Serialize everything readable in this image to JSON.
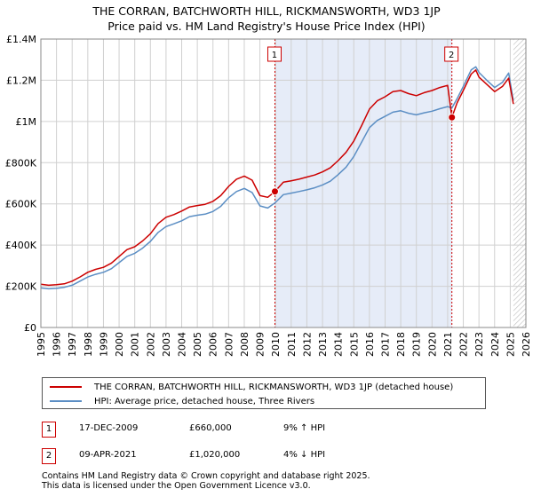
{
  "title": {
    "line1": "THE CORRAN, BATCHWORTH HILL, RICKMANSWORTH, WD3 1JP",
    "line2": "Price paid vs. HM Land Registry's House Price Index (HPI)"
  },
  "colors": {
    "property": "#cc0000",
    "hpi": "#5b8ec4",
    "shade": "#e6ecf8",
    "hatch": "#bbbbbb",
    "grid": "#d0d0d0"
  },
  "chart_data": {
    "type": "line",
    "xlim": [
      1995,
      2026
    ],
    "ylim": [
      0,
      1400000
    ],
    "x_ticks": [
      1995,
      1996,
      1997,
      1998,
      1999,
      2000,
      2001,
      2002,
      2003,
      2004,
      2005,
      2006,
      2007,
      2008,
      2009,
      2010,
      2011,
      2012,
      2013,
      2014,
      2015,
      2016,
      2017,
      2018,
      2019,
      2020,
      2021,
      2022,
      2023,
      2024,
      2025,
      2026
    ],
    "y_ticks": [
      {
        "value": 0,
        "label": "£0"
      },
      {
        "value": 200000,
        "label": "£200K"
      },
      {
        "value": 400000,
        "label": "£400K"
      },
      {
        "value": 600000,
        "label": "£600K"
      },
      {
        "value": 800000,
        "label": "£800K"
      },
      {
        "value": 1000000,
        "label": "£1M"
      },
      {
        "value": 1200000,
        "label": "£1.2M"
      },
      {
        "value": 1400000,
        "label": "£1.4M"
      }
    ],
    "shaded_period": [
      2009.96,
      2021.27
    ],
    "hatched_after": 2025.2,
    "series": [
      {
        "name": "THE CORRAN, BATCHWORTH HILL, RICKMANSWORTH, WD3 1JP (detached house)",
        "color": "#cc0000",
        "points": [
          [
            1995.0,
            210000
          ],
          [
            1995.5,
            205000
          ],
          [
            1996.0,
            208000
          ],
          [
            1996.5,
            212000
          ],
          [
            1997.0,
            225000
          ],
          [
            1997.5,
            245000
          ],
          [
            1998.0,
            268000
          ],
          [
            1998.5,
            282000
          ],
          [
            1999.0,
            292000
          ],
          [
            1999.5,
            312000
          ],
          [
            2000.0,
            345000
          ],
          [
            2000.5,
            378000
          ],
          [
            2001.0,
            392000
          ],
          [
            2001.5,
            420000
          ],
          [
            2002.0,
            455000
          ],
          [
            2002.5,
            505000
          ],
          [
            2003.0,
            535000
          ],
          [
            2003.5,
            548000
          ],
          [
            2004.0,
            565000
          ],
          [
            2004.5,
            585000
          ],
          [
            2005.0,
            592000
          ],
          [
            2005.5,
            598000
          ],
          [
            2006.0,
            612000
          ],
          [
            2006.5,
            640000
          ],
          [
            2007.0,
            685000
          ],
          [
            2007.5,
            720000
          ],
          [
            2008.0,
            735000
          ],
          [
            2008.5,
            715000
          ],
          [
            2009.0,
            640000
          ],
          [
            2009.5,
            632000
          ],
          [
            2009.96,
            660000
          ],
          [
            2010.5,
            705000
          ],
          [
            2011.0,
            712000
          ],
          [
            2011.5,
            720000
          ],
          [
            2012.0,
            730000
          ],
          [
            2012.5,
            740000
          ],
          [
            2013.0,
            755000
          ],
          [
            2013.5,
            775000
          ],
          [
            2014.0,
            810000
          ],
          [
            2014.5,
            850000
          ],
          [
            2015.0,
            905000
          ],
          [
            2015.5,
            980000
          ],
          [
            2016.0,
            1060000
          ],
          [
            2016.5,
            1100000
          ],
          [
            2017.0,
            1120000
          ],
          [
            2017.5,
            1145000
          ],
          [
            2018.0,
            1150000
          ],
          [
            2018.5,
            1135000
          ],
          [
            2019.0,
            1125000
          ],
          [
            2019.5,
            1140000
          ],
          [
            2020.0,
            1150000
          ],
          [
            2020.5,
            1165000
          ],
          [
            2021.0,
            1175000
          ],
          [
            2021.27,
            1020000
          ],
          [
            2021.6,
            1090000
          ],
          [
            2022.0,
            1150000
          ],
          [
            2022.5,
            1230000
          ],
          [
            2022.8,
            1250000
          ],
          [
            2023.0,
            1215000
          ],
          [
            2023.5,
            1180000
          ],
          [
            2024.0,
            1145000
          ],
          [
            2024.5,
            1170000
          ],
          [
            2024.9,
            1210000
          ],
          [
            2025.2,
            1085000
          ]
        ]
      },
      {
        "name": "HPI: Average price, detached house, Three Rivers",
        "color": "#5b8ec4",
        "points": [
          [
            1995.0,
            192000
          ],
          [
            1995.5,
            188000
          ],
          [
            1996.0,
            190000
          ],
          [
            1996.5,
            195000
          ],
          [
            1997.0,
            205000
          ],
          [
            1997.5,
            225000
          ],
          [
            1998.0,
            245000
          ],
          [
            1998.5,
            258000
          ],
          [
            1999.0,
            268000
          ],
          [
            1999.5,
            285000
          ],
          [
            2000.0,
            315000
          ],
          [
            2000.5,
            345000
          ],
          [
            2001.0,
            360000
          ],
          [
            2001.5,
            385000
          ],
          [
            2002.0,
            418000
          ],
          [
            2002.5,
            462000
          ],
          [
            2003.0,
            490000
          ],
          [
            2003.5,
            503000
          ],
          [
            2004.0,
            518000
          ],
          [
            2004.5,
            538000
          ],
          [
            2005.0,
            545000
          ],
          [
            2005.5,
            550000
          ],
          [
            2006.0,
            563000
          ],
          [
            2006.5,
            588000
          ],
          [
            2007.0,
            630000
          ],
          [
            2007.5,
            660000
          ],
          [
            2008.0,
            675000
          ],
          [
            2008.5,
            655000
          ],
          [
            2009.0,
            590000
          ],
          [
            2009.5,
            580000
          ],
          [
            2009.96,
            605000
          ],
          [
            2010.5,
            645000
          ],
          [
            2011.0,
            652000
          ],
          [
            2011.5,
            660000
          ],
          [
            2012.0,
            668000
          ],
          [
            2012.5,
            678000
          ],
          [
            2013.0,
            692000
          ],
          [
            2013.5,
            710000
          ],
          [
            2014.0,
            742000
          ],
          [
            2014.5,
            778000
          ],
          [
            2015.0,
            830000
          ],
          [
            2015.5,
            900000
          ],
          [
            2016.0,
            970000
          ],
          [
            2016.5,
            1005000
          ],
          [
            2017.0,
            1025000
          ],
          [
            2017.5,
            1045000
          ],
          [
            2018.0,
            1052000
          ],
          [
            2018.5,
            1040000
          ],
          [
            2019.0,
            1032000
          ],
          [
            2019.5,
            1042000
          ],
          [
            2020.0,
            1050000
          ],
          [
            2020.5,
            1062000
          ],
          [
            2021.0,
            1072000
          ],
          [
            2021.27,
            1065000
          ],
          [
            2021.6,
            1110000
          ],
          [
            2022.0,
            1170000
          ],
          [
            2022.5,
            1250000
          ],
          [
            2022.8,
            1265000
          ],
          [
            2023.0,
            1238000
          ],
          [
            2023.5,
            1200000
          ],
          [
            2024.0,
            1165000
          ],
          [
            2024.5,
            1190000
          ],
          [
            2024.9,
            1235000
          ],
          [
            2025.2,
            1100000
          ]
        ]
      }
    ],
    "markers": [
      {
        "label": "1",
        "x": 2009.96,
        "y": 660000
      },
      {
        "label": "2",
        "x": 2021.27,
        "y": 1020000
      }
    ]
  },
  "legend": [
    {
      "label": "THE CORRAN, BATCHWORTH HILL, RICKMANSWORTH, WD3 1JP (detached house)",
      "color": "#cc0000"
    },
    {
      "label": "HPI: Average price, detached house, Three Rivers",
      "color": "#5b8ec4"
    }
  ],
  "transactions": [
    {
      "num": "1",
      "date": "17-DEC-2009",
      "price": "£660,000",
      "hpi": "9% ↑ HPI"
    },
    {
      "num": "2",
      "date": "09-APR-2021",
      "price": "£1,020,000",
      "hpi": "4% ↓ HPI"
    }
  ],
  "footer": {
    "line1": "Contains HM Land Registry data © Crown copyright and database right 2025.",
    "line2": "This data is licensed under the Open Government Licence v3.0."
  }
}
